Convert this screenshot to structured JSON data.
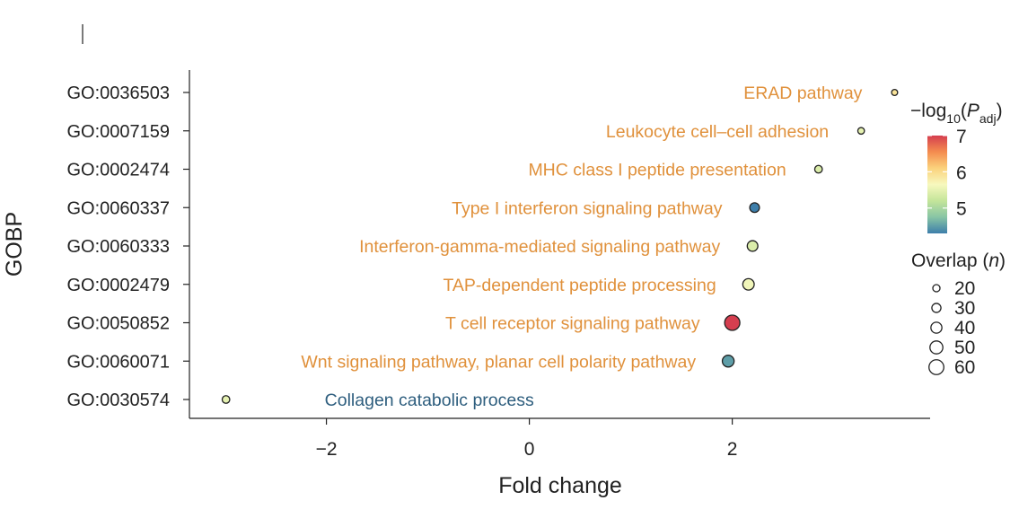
{
  "chart_data": {
    "type": "scatter",
    "xlabel": "Fold change",
    "ylabel": "GOBP",
    "xlim": [
      -3.35,
      3.95
    ],
    "xticks": [
      {
        "value": -2,
        "label": "−2"
      },
      {
        "value": 0,
        "label": "0"
      },
      {
        "value": 2,
        "label": "2"
      }
    ],
    "grid": false,
    "points": [
      {
        "term": "GO:0036503",
        "label": "ERAD pathway",
        "fold_change": 3.6,
        "neg_log10_padj": 5.9,
        "overlap": 14,
        "label_color": "#e0913c"
      },
      {
        "term": "GO:0007159",
        "label": "Leukocyte cell–cell adhesion",
        "fold_change": 3.27,
        "neg_log10_padj": 5.5,
        "overlap": 17,
        "label_color": "#e0913c"
      },
      {
        "term": "GO:0002474",
        "label": "MHC class I peptide presentation",
        "fold_change": 2.85,
        "neg_log10_padj": 5.4,
        "overlap": 22,
        "label_color": "#e0913c"
      },
      {
        "term": "GO:0060337",
        "label": "Type I interferon signaling pathway",
        "fold_change": 2.22,
        "neg_log10_padj": 4.3,
        "overlap": 33,
        "label_color": "#e0913c"
      },
      {
        "term": "GO:0060333",
        "label": "Interferon-gamma-mediated signaling pathway",
        "fold_change": 2.2,
        "neg_log10_padj": 5.4,
        "overlap": 38,
        "label_color": "#e0913c"
      },
      {
        "term": "GO:0002479",
        "label": "TAP-dependent peptide processing",
        "fold_change": 2.16,
        "neg_log10_padj": 5.6,
        "overlap": 42,
        "label_color": "#e0913c"
      },
      {
        "term": "GO:0050852",
        "label": "T cell receptor signaling pathway",
        "fold_change": 2.0,
        "neg_log10_padj": 7.0,
        "overlap": 62,
        "label_color": "#e0913c"
      },
      {
        "term": "GO:0060071",
        "label": "Wnt signaling pathway, planar cell polarity pathway",
        "fold_change": 1.96,
        "neg_log10_padj": 4.5,
        "overlap": 44,
        "label_color": "#e0913c"
      },
      {
        "term": "GO:0030574",
        "label": "Collagen catabolic process",
        "fold_change": -2.99,
        "neg_log10_padj": 5.5,
        "overlap": 22,
        "label_color": "#2e5e7e"
      }
    ],
    "color_legend": {
      "title_main": "−log",
      "title_sub": "10",
      "title_open": "(",
      "title_p": "P",
      "title_sub2": "adj",
      "title_close": ")",
      "ticks": [
        {
          "value": 7,
          "label": "7"
        },
        {
          "value": 6,
          "label": "6"
        },
        {
          "value": 5,
          "label": "5"
        }
      ],
      "range": [
        4.3,
        7.0
      ],
      "colormap": [
        "#3d7eaa",
        "#88c5a5",
        "#c4e59a",
        "#f7f8be",
        "#fbd27c",
        "#f48c4f",
        "#d53e4f"
      ]
    },
    "size_legend": {
      "title": "Overlap (",
      "title_italic": "n",
      "title_close": ")",
      "entries": [
        {
          "value": 20,
          "label": "20"
        },
        {
          "value": 30,
          "label": "30"
        },
        {
          "value": 40,
          "label": "40"
        },
        {
          "value": 50,
          "label": "50"
        },
        {
          "value": 60,
          "label": "60"
        }
      ]
    }
  }
}
